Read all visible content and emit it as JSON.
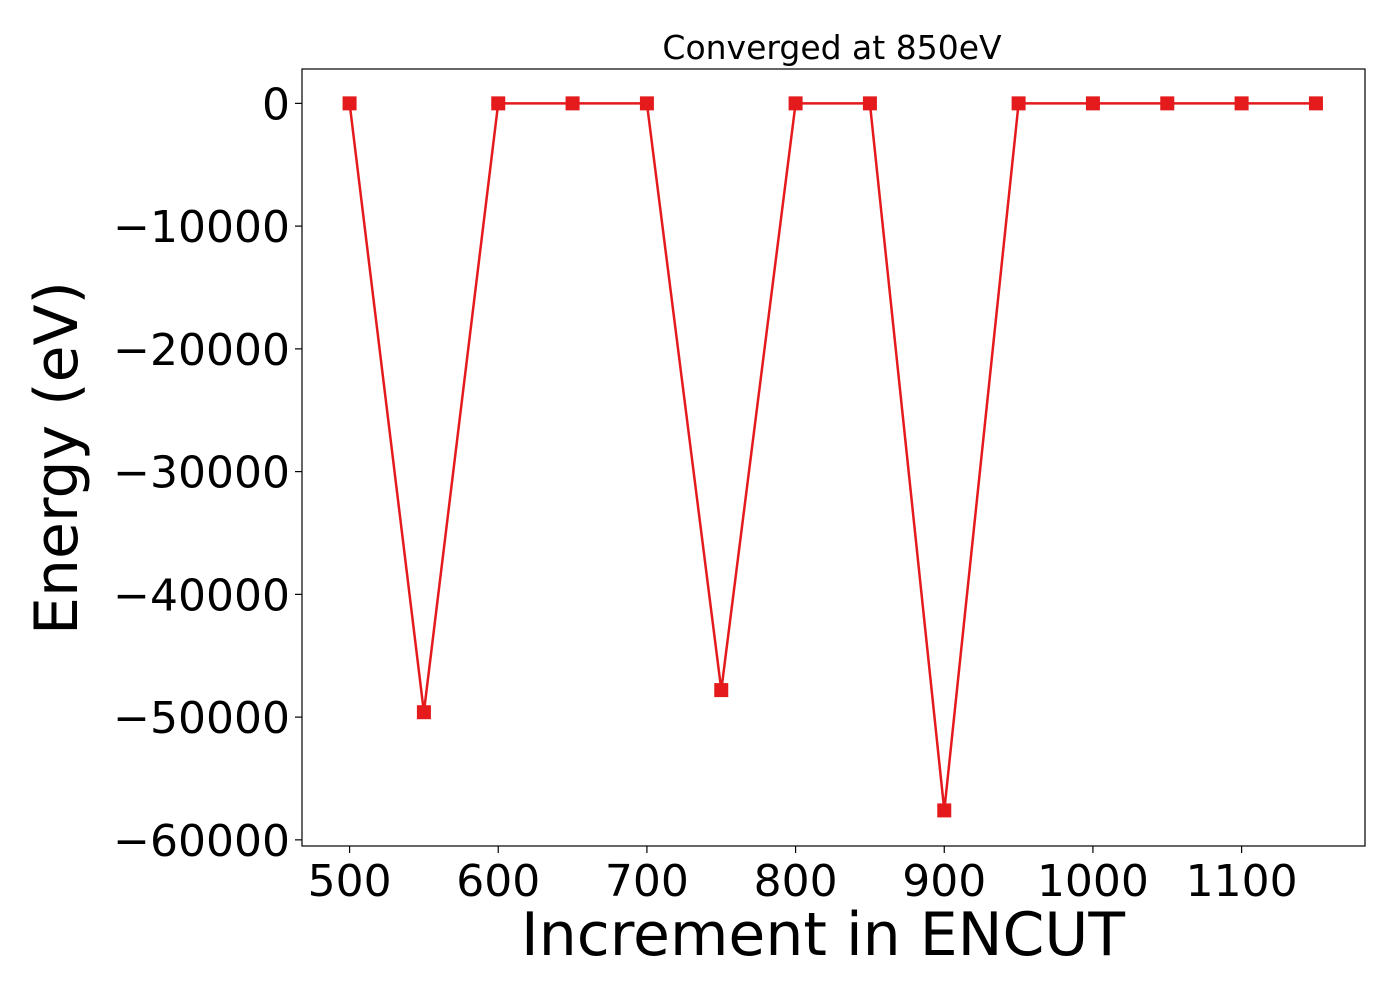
{
  "chart_data": {
    "type": "line",
    "title": "Converged at 850eV",
    "xlabel": "Increment in ENCUT",
    "ylabel": "Energy (eV)",
    "x": [
      500,
      550,
      600,
      650,
      700,
      750,
      800,
      850,
      900,
      950,
      1000,
      1050,
      1100,
      1150
    ],
    "series": [
      {
        "values": [
          0,
          -49600,
          0,
          0,
          0,
          -47800,
          0,
          0,
          -57600,
          0,
          0,
          0,
          0,
          0
        ],
        "color": "#e41a1c",
        "marker": "square"
      }
    ],
    "xticks": [
      500,
      600,
      700,
      800,
      900,
      1000,
      1100
    ],
    "xtick_labels": [
      "500",
      "600",
      "700",
      "800",
      "900",
      "1000",
      "1100"
    ],
    "yticks": [
      0,
      -10000,
      -20000,
      -30000,
      -40000,
      -50000,
      -60000
    ],
    "ytick_labels": [
      "0",
      "−10000",
      "−20000",
      "−30000",
      "−40000",
      "−50000",
      "−60000"
    ],
    "xlim": [
      468,
      1183
    ],
    "ylim": [
      -60500,
      2800
    ],
    "grid": false,
    "legend": "none"
  }
}
